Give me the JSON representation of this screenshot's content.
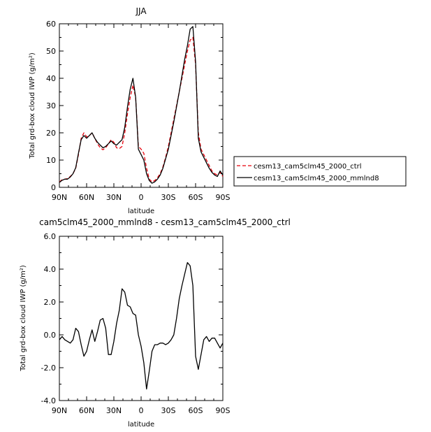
{
  "chart_data": [
    {
      "type": "line",
      "title": "JJA",
      "xlabel": "latitude",
      "ylabel": "Total grd-box cloud IWP (g/m²)",
      "xlim": [
        -90,
        90
      ],
      "ylim": [
        0,
        60
      ],
      "x_ticks": [
        -90,
        -60,
        -30,
        0,
        30,
        60,
        90
      ],
      "x_tick_labels": [
        "90N",
        "60N",
        "30N",
        "0",
        "30S",
        "60S",
        "90S"
      ],
      "y_ticks": [
        0,
        10,
        20,
        30,
        40,
        50,
        60
      ],
      "y_tick_labels": [
        "0",
        "10",
        "20",
        "30",
        "40",
        "50",
        "60"
      ],
      "grid": false,
      "legend": "right",
      "x": [
        -90,
        -87,
        -84,
        -81,
        -78,
        -75,
        -72,
        -69,
        -66,
        -63,
        -60,
        -57,
        -54,
        -51,
        -48,
        -45,
        -42,
        -39,
        -36,
        -33,
        -30,
        -27,
        -24,
        -21,
        -18,
        -15,
        -12,
        -9,
        -6,
        -3,
        0,
        3,
        6,
        9,
        12,
        15,
        18,
        21,
        24,
        27,
        30,
        33,
        36,
        39,
        42,
        45,
        48,
        51,
        54,
        57,
        60,
        63,
        66,
        69,
        72,
        75,
        78,
        81,
        84,
        87,
        90
      ],
      "series": [
        {
          "name": "cesm13_cam5clm45_2000_ctrl",
          "color": "#e8000b",
          "dash": "dashed",
          "values": [
            2.0,
            2.8,
            3.0,
            3.2,
            4.0,
            5.0,
            7.0,
            12.0,
            18.0,
            20.0,
            18.5,
            19.0,
            20.0,
            18.0,
            16.0,
            14.5,
            13.8,
            14.5,
            16.0,
            17.5,
            16.5,
            14.5,
            14.2,
            15.0,
            20.0,
            27.0,
            33.0,
            37.5,
            33.0,
            15.0,
            14.0,
            12.5,
            7.0,
            3.0,
            2.0,
            2.5,
            3.5,
            5.0,
            7.5,
            11.0,
            15.0,
            20.0,
            25.0,
            30.0,
            35.0,
            40.0,
            45.0,
            50.0,
            54.0,
            55.0,
            45.0,
            20.0,
            14.0,
            12.0,
            10.0,
            8.0,
            6.0,
            5.0,
            4.5,
            5.5,
            4.0
          ]
        },
        {
          "name": "cesm13_cam5clm45_2000_mmlnd8",
          "color": "#000000",
          "dash": "solid",
          "values": [
            1.8,
            2.6,
            3.0,
            3.0,
            3.8,
            5.0,
            7.2,
            12.5,
            17.5,
            19.0,
            18.0,
            19.0,
            20.0,
            18.0,
            16.5,
            15.5,
            14.5,
            15.0,
            16.0,
            17.0,
            16.0,
            15.5,
            16.5,
            17.5,
            22.0,
            29.5,
            36.0,
            40.0,
            33.0,
            14.0,
            12.0,
            10.0,
            5.0,
            2.5,
            1.5,
            2.0,
            3.0,
            4.5,
            7.0,
            10.5,
            14.0,
            19.0,
            24.0,
            29.5,
            35.0,
            41.0,
            47.0,
            52.0,
            58.0,
            59.0,
            46.0,
            18.0,
            13.0,
            11.0,
            9.0,
            7.0,
            5.5,
            4.5,
            4.0,
            6.0,
            4.5
          ]
        }
      ]
    },
    {
      "type": "line",
      "title": "cam5clm45_2000_mmlnd8 - cesm13_cam5clm45_2000_ctrl",
      "xlabel": "latitude",
      "ylabel": "Total grd-box cloud IWP (g/m²)",
      "xlim": [
        -90,
        90
      ],
      "ylim": [
        -4,
        6
      ],
      "x_ticks": [
        -90,
        -60,
        -30,
        0,
        30,
        60,
        90
      ],
      "x_tick_labels": [
        "90N",
        "60N",
        "30N",
        "0",
        "30S",
        "60S",
        "90S"
      ],
      "y_ticks": [
        -4,
        -2,
        0,
        2,
        4,
        6
      ],
      "y_tick_labels": [
        "-4.0",
        "-2.0",
        "0.0",
        "2.0",
        "4.0",
        "6.0"
      ],
      "grid": false,
      "x": [
        -90,
        -87,
        -84,
        -81,
        -78,
        -75,
        -72,
        -69,
        -66,
        -63,
        -60,
        -57,
        -54,
        -51,
        -48,
        -45,
        -42,
        -39,
        -36,
        -33,
        -30,
        -27,
        -24,
        -21,
        -18,
        -15,
        -12,
        -9,
        -6,
        -3,
        0,
        3,
        6,
        9,
        12,
        15,
        18,
        21,
        24,
        27,
        30,
        33,
        36,
        39,
        42,
        45,
        48,
        51,
        54,
        57,
        60,
        63,
        66,
        69,
        72,
        75,
        78,
        81,
        84,
        87,
        90
      ],
      "series": [
        {
          "color": "#000000",
          "values": [
            -0.3,
            -0.1,
            -0.3,
            -0.4,
            -0.5,
            -0.3,
            0.4,
            0.2,
            -0.6,
            -1.3,
            -1.0,
            -0.3,
            0.3,
            -0.4,
            0.2,
            0.9,
            1.0,
            0.4,
            -1.2,
            -1.2,
            -0.4,
            0.7,
            1.5,
            2.8,
            2.6,
            1.8,
            1.7,
            1.3,
            1.2,
            0.0,
            -0.7,
            -1.7,
            -3.3,
            -2.2,
            -1.0,
            -0.6,
            -0.6,
            -0.5,
            -0.5,
            -0.6,
            -0.5,
            -0.3,
            0.0,
            1.0,
            2.2,
            3.0,
            3.7,
            4.4,
            4.2,
            3.0,
            -1.3,
            -2.1,
            -1.2,
            -0.3,
            -0.1,
            -0.4,
            -0.2,
            -0.2,
            -0.5,
            -0.8,
            -0.5
          ]
        }
      ]
    }
  ]
}
